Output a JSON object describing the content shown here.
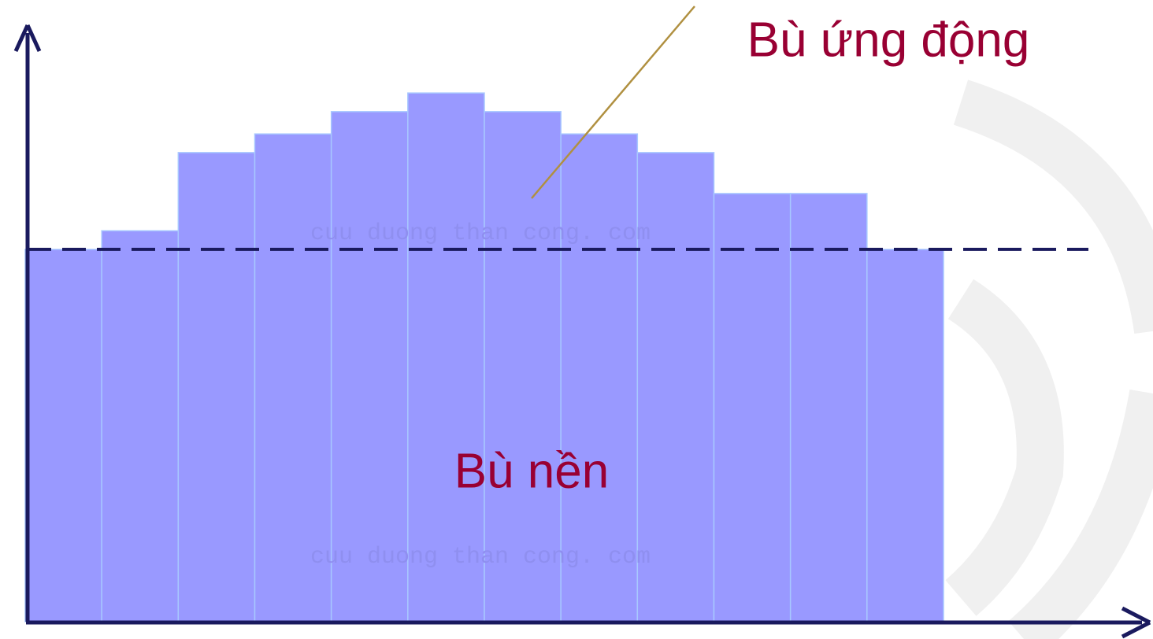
{
  "chart_data": {
    "type": "bar",
    "categories": [
      null,
      null,
      null,
      null,
      null,
      null,
      null,
      null,
      null,
      null,
      null,
      null
    ],
    "values": [
      100,
      105,
      126,
      131,
      137,
      142,
      137,
      131,
      126,
      115,
      115,
      100
    ],
    "color": "#9999ff",
    "ylim": [
      0,
      160
    ],
    "reference_line": 100,
    "annotations": [
      "Bù ứng động",
      "Bù nền"
    ],
    "watermark": "cuu duong than cong. com"
  }
}
